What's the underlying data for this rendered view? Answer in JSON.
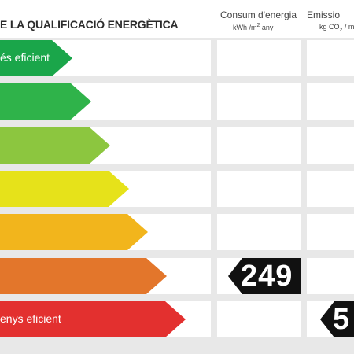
{
  "header": {
    "title": "E LA QUALIFICACIÓ ENERGÈTICA",
    "consum": {
      "label": "Consum d'energia",
      "unit_prefix": "kWh /m",
      "unit_sup": "2",
      "unit_suffix": " any"
    },
    "emissions": {
      "label": "Emissio",
      "unit_prefix": "kg CO",
      "unit_sub": "2",
      "unit_suffix": " / m"
    }
  },
  "classes": [
    {
      "text": "és eficient",
      "color": "#1aa64a"
    },
    {
      "text": "",
      "color": "#2fb34a"
    },
    {
      "text": "",
      "color": "#8cc63f"
    },
    {
      "text": "",
      "color": "#e6e21a"
    },
    {
      "text": "",
      "color": "#f2b51c"
    },
    {
      "text": "",
      "color": "#e3762b"
    },
    {
      "text": "enys eficient",
      "color": "#e3302f"
    }
  ],
  "ratings": {
    "consum": {
      "value": "249",
      "class_index": 5
    },
    "emissions": {
      "value": "5",
      "class_index": 6
    }
  }
}
